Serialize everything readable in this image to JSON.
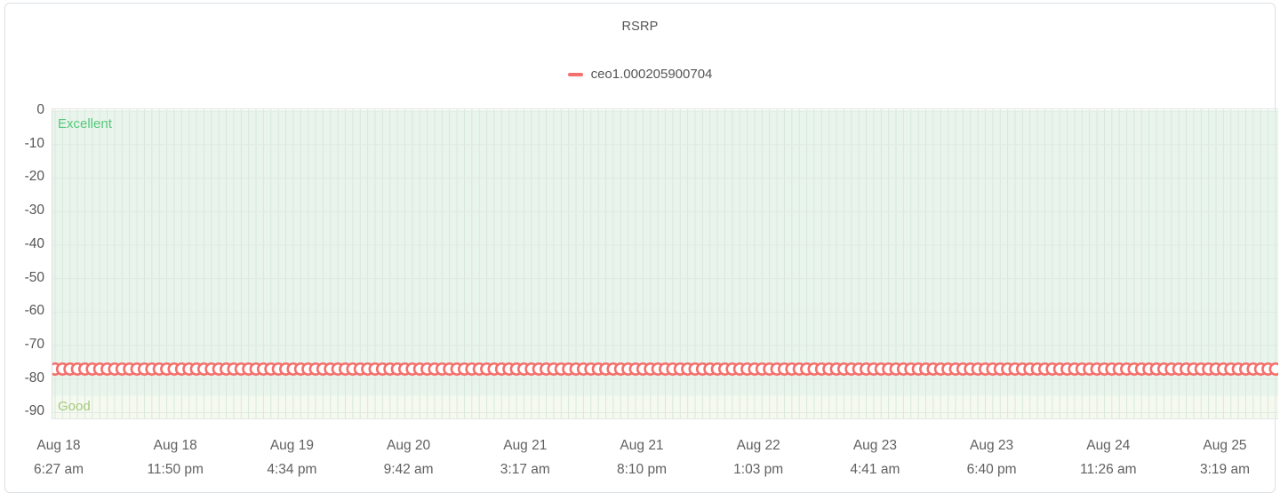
{
  "chart_data": {
    "type": "line",
    "title": "RSRP",
    "legend": [
      {
        "label": "ceo1.000205900704",
        "color": "#F3706C"
      }
    ],
    "series": [
      {
        "name": "ceo1.000205900704",
        "color": "#F3706C",
        "marker": "circle",
        "marker_fill": "#ffffff",
        "constant_value_dbm": -77,
        "num_points": 165
      }
    ],
    "x_ticks": [
      {
        "date": "Aug 18",
        "time": "6:27 am"
      },
      {
        "date": "Aug 18",
        "time": "11:50 pm"
      },
      {
        "date": "Aug 19",
        "time": "4:34 pm"
      },
      {
        "date": "Aug 20",
        "time": "9:42 am"
      },
      {
        "date": "Aug 21",
        "time": "3:17 am"
      },
      {
        "date": "Aug 21",
        "time": "8:10 pm"
      },
      {
        "date": "Aug 22",
        "time": "1:03 pm"
      },
      {
        "date": "Aug 23",
        "time": "4:41 am"
      },
      {
        "date": "Aug 23",
        "time": "6:40 pm"
      },
      {
        "date": "Aug 24",
        "time": "11:26 am"
      },
      {
        "date": "Aug 25",
        "time": "3:19 am"
      }
    ],
    "y_ticks": [
      0,
      -10,
      -20,
      -30,
      -40,
      -50,
      -60,
      -70,
      -80,
      -90
    ],
    "y_axis_range": {
      "max": 0,
      "min": -92
    },
    "trend_zones": [
      {
        "label": "Excellent",
        "from_dbm": 0,
        "to_dbm": -85,
        "background": "#E9F5EC",
        "label_color": "#57C77C"
      },
      {
        "label": "Good",
        "from_dbm": -85,
        "to_dbm": -92,
        "background": "#F5F9EF",
        "label_color": "#A4C97E"
      }
    ],
    "grid": {
      "vertical_line_per_point": true,
      "vertical_line_color": "#D3E6D8",
      "horizontal_line_at_ticks": true,
      "horizontal_line_color": "#DFEAE2"
    },
    "legend_position": "top-center"
  }
}
